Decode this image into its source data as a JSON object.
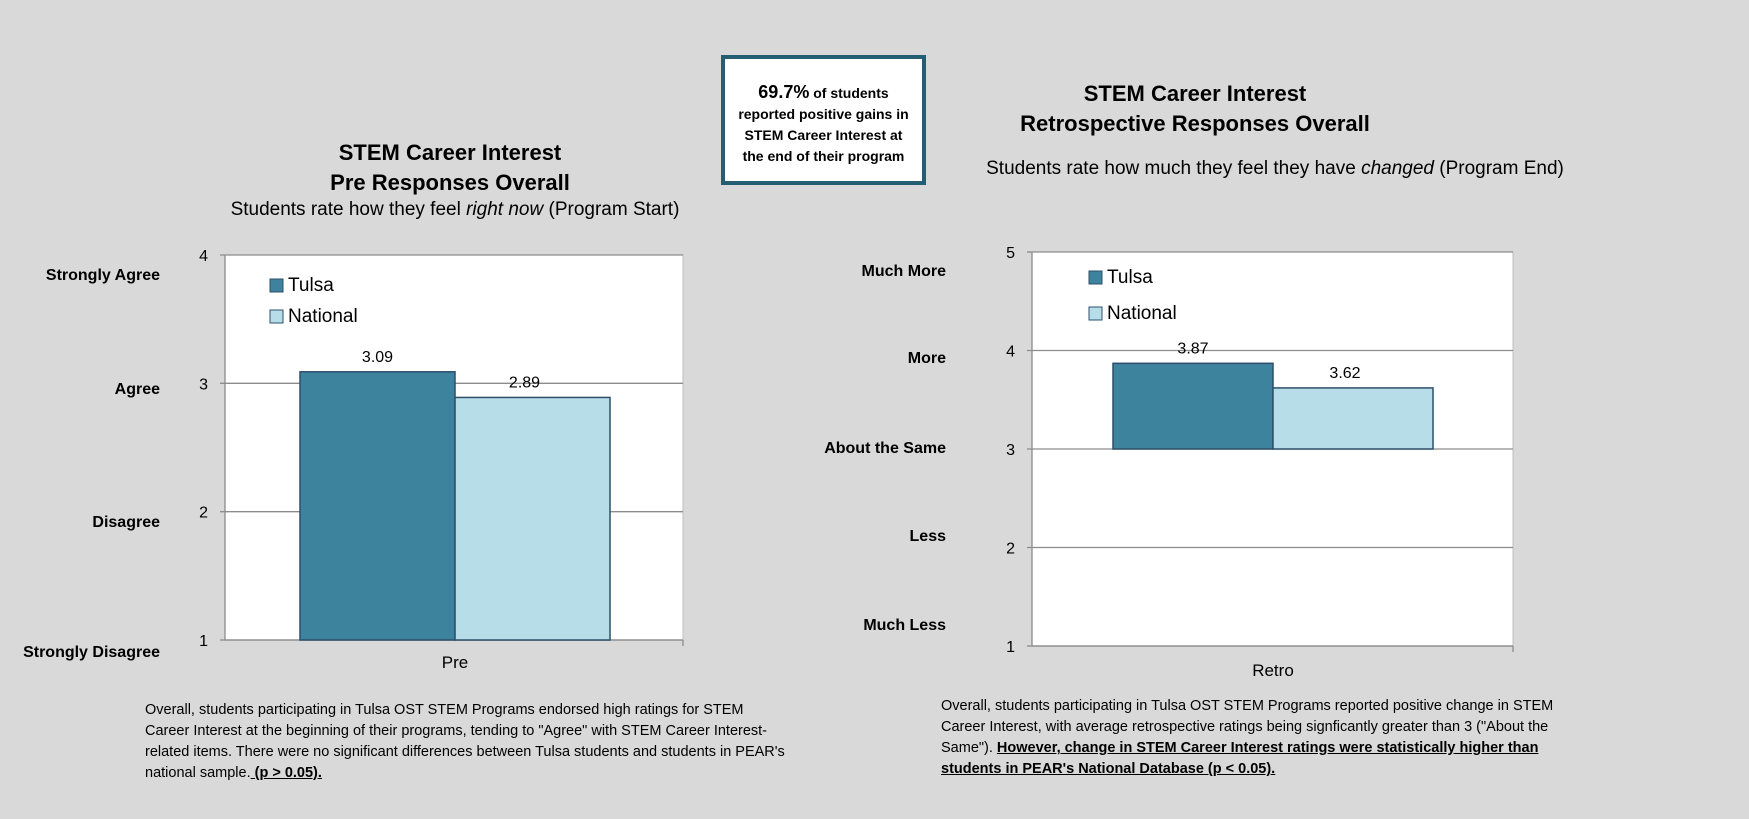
{
  "callout": {
    "percent": "69.7%",
    "text_a": " of students",
    "text_b": "reported positive gains in",
    "text_c": "STEM Career Interest at",
    "text_d": "the end of their program"
  },
  "left": {
    "title_1": "STEM Career Interest",
    "title_2": "Pre Responses Overall",
    "subtitle_a": "Students rate how they feel ",
    "subtitle_em": "right now",
    "subtitle_b": " (Program Start)",
    "response_labels": [
      "Strongly Agree",
      "Agree",
      "Disagree",
      "Strongly Disagree"
    ],
    "note_text": "Overall, students participating in Tulsa OST STEM Programs endorsed high ratings for STEM Career Interest at the beginning of their programs, tending to \"Agree\" with STEM Career Interest-related items. There were no significant differences between Tulsa students and students in PEAR's national sample.",
    "note_emph": " (p > 0.05)."
  },
  "right": {
    "title_1": "STEM Career Interest",
    "title_2": "Retrospective Responses Overall",
    "subtitle_a": "Students rate how much they feel they have ",
    "subtitle_em": "changed",
    "subtitle_b": " (Program End)",
    "response_labels": [
      "Much More",
      "More",
      "About the Same",
      "Less",
      "Much Less"
    ],
    "note_text": "Overall, students participating in Tulsa OST STEM Programs reported positive change in STEM Career Interest, with average retrospective ratings being signficantly greater than 3 (\"About the Same\"). ",
    "note_emph": "However, change in STEM Career Interest ratings were statistically higher than students in PEAR's National Database (p < 0.05)."
  },
  "colors": {
    "tulsa": "#3d839d",
    "national": "#b7dde8",
    "edge": "#2d4f6b"
  },
  "chart_data": [
    {
      "type": "bar",
      "categories": [
        "Pre"
      ],
      "series": [
        {
          "name": "Tulsa",
          "values": [
            3.09
          ]
        },
        {
          "name": "National",
          "values": [
            2.89
          ]
        }
      ],
      "ylim": [
        1,
        4
      ],
      "yticks": [
        1,
        2,
        3,
        4
      ],
      "grid": true,
      "legend": "top-left"
    },
    {
      "type": "bar",
      "categories": [
        "Retro"
      ],
      "series": [
        {
          "name": "Tulsa",
          "values": [
            3.87
          ]
        },
        {
          "name": "National",
          "values": [
            3.62
          ]
        }
      ],
      "ylim": [
        1,
        5
      ],
      "yticks": [
        1,
        2,
        3,
        4,
        5
      ],
      "baseline": 3,
      "grid": true,
      "legend": "top-left"
    }
  ]
}
